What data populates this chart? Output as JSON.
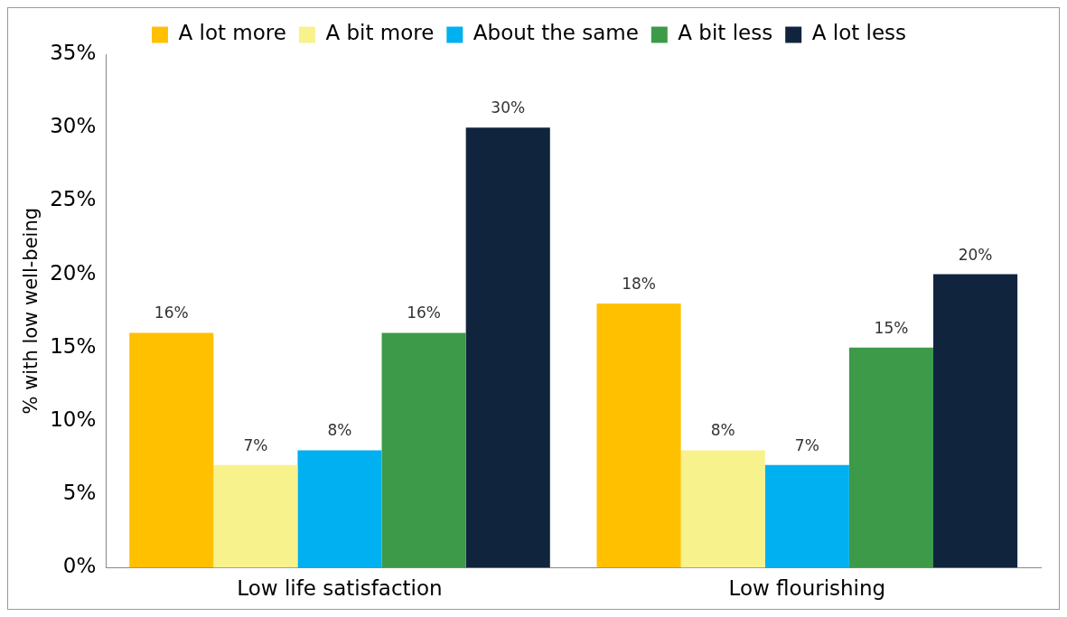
{
  "chart_data": {
    "type": "bar",
    "ylabel": "% with low well-being",
    "categories": [
      "Low life satisfaction",
      "Low flourishing"
    ],
    "ylim": [
      0,
      35
    ],
    "yticks": [
      {
        "value": 0,
        "label": "0%"
      },
      {
        "value": 5,
        "label": "5%"
      },
      {
        "value": 10,
        "label": "10%"
      },
      {
        "value": 15,
        "label": "15%"
      },
      {
        "value": 20,
        "label": "20%"
      },
      {
        "value": 25,
        "label": "25%"
      },
      {
        "value": 30,
        "label": "30%"
      },
      {
        "value": 35,
        "label": "35%"
      }
    ],
    "grid": false,
    "legend": "top",
    "series": [
      {
        "name": "A lot more",
        "color": "#ffc000",
        "values": [
          16,
          18
        ],
        "value_labels": [
          "16%",
          "18%"
        ]
      },
      {
        "name": "A bit more",
        "color": "#f7f28c",
        "values": [
          7,
          8
        ],
        "value_labels": [
          "7%",
          "8%"
        ]
      },
      {
        "name": "About the same",
        "color": "#00b0f0",
        "values": [
          8,
          7
        ],
        "value_labels": [
          "8%",
          "7%"
        ]
      },
      {
        "name": "A bit less",
        "color": "#3c9a48",
        "values": [
          16,
          15
        ],
        "value_labels": [
          "16%",
          "15%"
        ]
      },
      {
        "name": "A lot less",
        "color": "#10243e",
        "values": [
          30,
          20
        ],
        "value_labels": [
          "30%",
          "20%"
        ]
      }
    ]
  }
}
